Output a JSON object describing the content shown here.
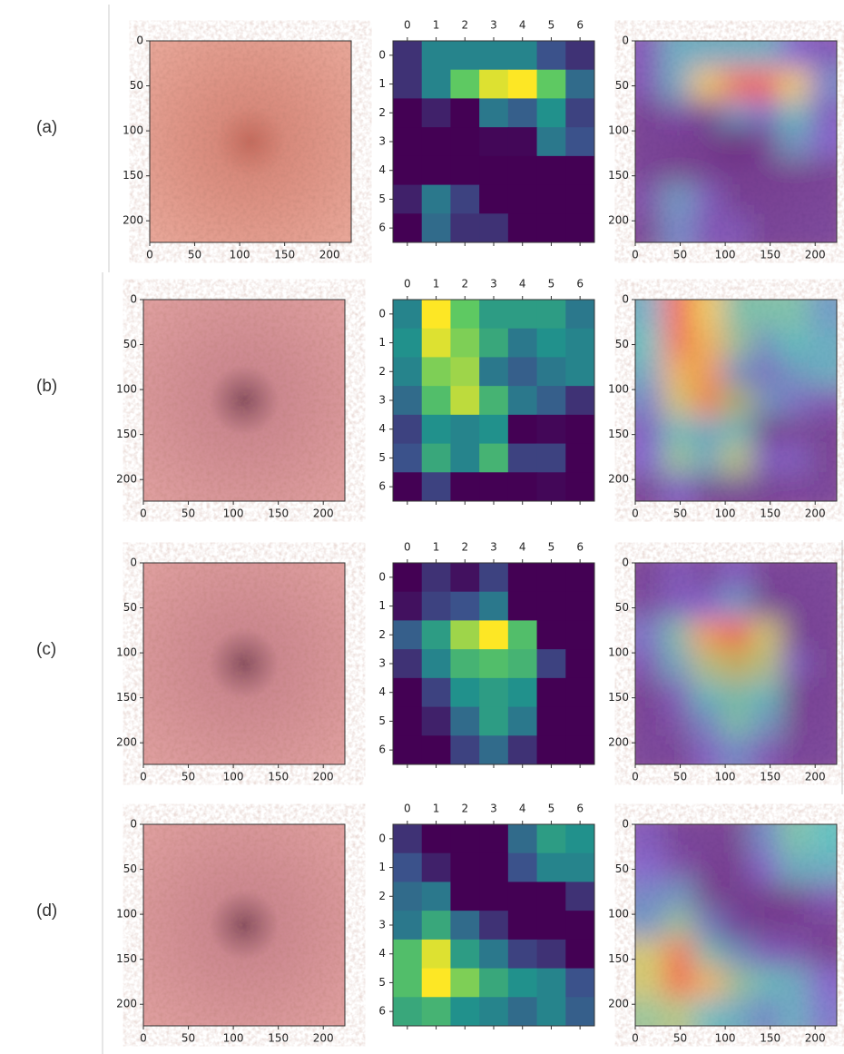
{
  "rows": [
    {
      "label": "(a)",
      "heatmap": [
        [
          0.15,
          0.45,
          0.45,
          0.45,
          0.45,
          0.25,
          0.15
        ],
        [
          0.15,
          0.45,
          0.75,
          0.95,
          1.0,
          0.75,
          0.35
        ],
        [
          0,
          0.1,
          0,
          0.4,
          0.3,
          0.5,
          0.2
        ],
        [
          0,
          0,
          0,
          0.02,
          0.02,
          0.4,
          0.25
        ],
        [
          0,
          0,
          0,
          0,
          0,
          0,
          0
        ],
        [
          0.1,
          0.4,
          0.2,
          0,
          0,
          0,
          0
        ],
        [
          0,
          0.35,
          0.15,
          0.15,
          0,
          0,
          0
        ]
      ]
    },
    {
      "label": "(b)",
      "heatmap": [
        [
          0.45,
          1.0,
          0.75,
          0.55,
          0.55,
          0.55,
          0.4
        ],
        [
          0.5,
          0.95,
          0.8,
          0.6,
          0.4,
          0.5,
          0.45
        ],
        [
          0.45,
          0.8,
          0.85,
          0.4,
          0.3,
          0.4,
          0.45
        ],
        [
          0.35,
          0.7,
          0.9,
          0.65,
          0.4,
          0.3,
          0.15
        ],
        [
          0.2,
          0.5,
          0.45,
          0.5,
          0,
          0.02,
          0
        ],
        [
          0.25,
          0.6,
          0.45,
          0.65,
          0.2,
          0.2,
          0
        ],
        [
          0,
          0.2,
          0,
          0,
          0,
          0.02,
          0
        ]
      ]
    },
    {
      "label": "(c)",
      "heatmap": [
        [
          0,
          0.15,
          0.05,
          0.2,
          0,
          0,
          0
        ],
        [
          0.05,
          0.2,
          0.25,
          0.4,
          0,
          0,
          0
        ],
        [
          0.3,
          0.55,
          0.85,
          1.0,
          0.7,
          0,
          0
        ],
        [
          0.15,
          0.45,
          0.65,
          0.7,
          0.65,
          0.2,
          0
        ],
        [
          0,
          0.2,
          0.5,
          0.55,
          0.5,
          0,
          0
        ],
        [
          0,
          0.1,
          0.35,
          0.55,
          0.4,
          0,
          0
        ],
        [
          0,
          0,
          0.2,
          0.35,
          0.15,
          0,
          0
        ]
      ]
    },
    {
      "label": "(d)",
      "heatmap": [
        [
          0.15,
          0,
          0,
          0,
          0.35,
          0.55,
          0.5
        ],
        [
          0.25,
          0.1,
          0,
          0,
          0.25,
          0.45,
          0.45
        ],
        [
          0.35,
          0.4,
          0,
          0,
          0,
          0,
          0.15
        ],
        [
          0.4,
          0.6,
          0.35,
          0.15,
          0,
          0,
          0
        ],
        [
          0.7,
          0.95,
          0.55,
          0.4,
          0.2,
          0.15,
          0
        ],
        [
          0.7,
          1.0,
          0.8,
          0.6,
          0.5,
          0.45,
          0.25
        ],
        [
          0.6,
          0.65,
          0.5,
          0.45,
          0.35,
          0.45,
          0.3
        ]
      ]
    }
  ],
  "image_ticks": [
    0,
    50,
    100,
    150,
    200
  ],
  "image_range": [
    0,
    224
  ],
  "heatmap_ticks": [
    0,
    1,
    2,
    3,
    4,
    5,
    6
  ]
}
